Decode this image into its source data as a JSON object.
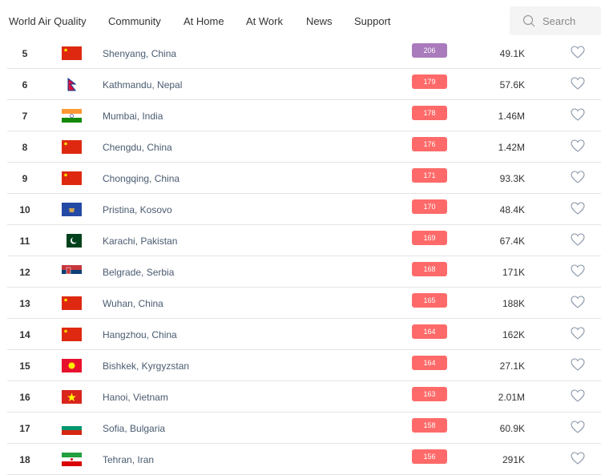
{
  "nav": {
    "items": [
      "World Air Quality",
      "Community",
      "At Home",
      "At Work",
      "News",
      "Support"
    ],
    "search_placeholder": "Search"
  },
  "colors": {
    "very_unhealthy": "#a97abc",
    "unhealthy": "#fe6a69"
  },
  "rows": [
    {
      "rank": "5",
      "flag": "china",
      "city": "Shenyang, China",
      "aqi": "206",
      "level": "very_unhealthy",
      "followers": "49.1K"
    },
    {
      "rank": "6",
      "flag": "nepal",
      "city": "Kathmandu, Nepal",
      "aqi": "179",
      "level": "unhealthy",
      "followers": "57.6K"
    },
    {
      "rank": "7",
      "flag": "india",
      "city": "Mumbai, India",
      "aqi": "178",
      "level": "unhealthy",
      "followers": "1.46M"
    },
    {
      "rank": "8",
      "flag": "china",
      "city": "Chengdu, China",
      "aqi": "176",
      "level": "unhealthy",
      "followers": "1.42M"
    },
    {
      "rank": "9",
      "flag": "china",
      "city": "Chongqing, China",
      "aqi": "171",
      "level": "unhealthy",
      "followers": "93.3K"
    },
    {
      "rank": "10",
      "flag": "kosovo",
      "city": "Pristina, Kosovo",
      "aqi": "170",
      "level": "unhealthy",
      "followers": "48.4K"
    },
    {
      "rank": "11",
      "flag": "pakistan",
      "city": "Karachi, Pakistan",
      "aqi": "169",
      "level": "unhealthy",
      "followers": "67.4K"
    },
    {
      "rank": "12",
      "flag": "serbia",
      "city": "Belgrade, Serbia",
      "aqi": "168",
      "level": "unhealthy",
      "followers": "171K"
    },
    {
      "rank": "13",
      "flag": "china",
      "city": "Wuhan, China",
      "aqi": "165",
      "level": "unhealthy",
      "followers": "188K"
    },
    {
      "rank": "14",
      "flag": "china",
      "city": "Hangzhou, China",
      "aqi": "164",
      "level": "unhealthy",
      "followers": "162K"
    },
    {
      "rank": "15",
      "flag": "kyrgyzstan",
      "city": "Bishkek, Kyrgyzstan",
      "aqi": "164",
      "level": "unhealthy",
      "followers": "27.1K"
    },
    {
      "rank": "16",
      "flag": "vietnam",
      "city": "Hanoi, Vietnam",
      "aqi": "163",
      "level": "unhealthy",
      "followers": "2.01M"
    },
    {
      "rank": "17",
      "flag": "bulgaria",
      "city": "Sofia, Bulgaria",
      "aqi": "158",
      "level": "unhealthy",
      "followers": "60.9K"
    },
    {
      "rank": "18",
      "flag": "iran",
      "city": "Tehran, Iran",
      "aqi": "156",
      "level": "unhealthy",
      "followers": "291K"
    }
  ]
}
